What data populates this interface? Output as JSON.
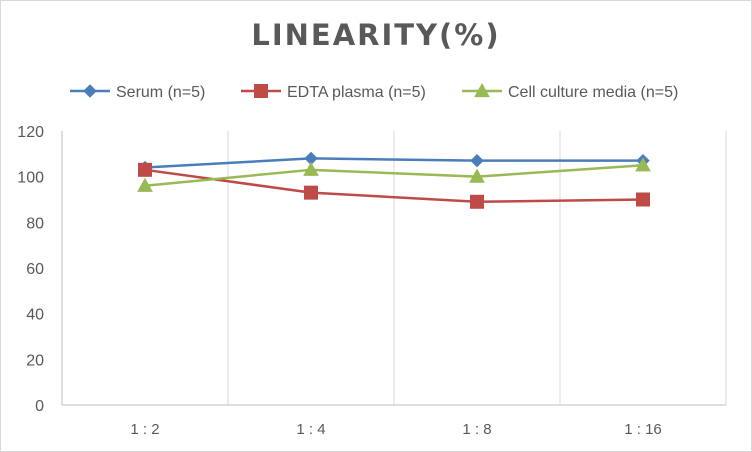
{
  "chart_data": {
    "type": "line",
    "title": "LINEARITY(%)",
    "xlabel": "",
    "ylabel": "",
    "categories": [
      "1 : 2",
      "1 : 4",
      "1 : 8",
      "1 : 16"
    ],
    "ylim": [
      0,
      120
    ],
    "yticks": [
      0,
      20,
      40,
      60,
      80,
      100,
      120
    ],
    "grid": "vertical",
    "legend": "top",
    "series": [
      {
        "name": "Serum (n=5)",
        "values": [
          104,
          108,
          107,
          107
        ],
        "color": "#4a7ebb",
        "marker": "diamond"
      },
      {
        "name": "EDTA plasma (n=5)",
        "values": [
          103,
          93,
          89,
          90
        ],
        "color": "#be4b48",
        "marker": "square"
      },
      {
        "name": "Cell culture media (n=5)",
        "values": [
          96,
          103,
          100,
          105
        ],
        "color": "#98b954",
        "marker": "triangle"
      }
    ]
  }
}
